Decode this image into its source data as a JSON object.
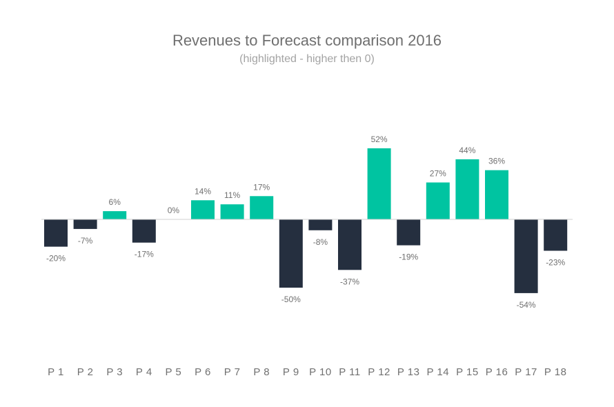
{
  "chart_data": {
    "type": "bar",
    "title": "Revenues to Forecast comparison 2016",
    "subtitle": "(highlighted - higher then 0)",
    "categories": [
      "P 1",
      "P 2",
      "P 3",
      "P 4",
      "P 5",
      "P 6",
      "P 7",
      "P 8",
      "P 9",
      "P 10",
      "P 11",
      "P 12",
      "P 13",
      "P 14",
      "P 15",
      "P 16",
      "P 17",
      "P 18"
    ],
    "values": [
      -20,
      -7,
      6,
      -17,
      0,
      14,
      11,
      17,
      -50,
      -8,
      -37,
      52,
      -19,
      27,
      44,
      36,
      -54,
      -23
    ],
    "data_labels": [
      "-20%",
      "-7%",
      "6%",
      "-17%",
      "0%",
      "14%",
      "11%",
      "17%",
      "-50%",
      "-8%",
      "-37%",
      "52%",
      "-19%",
      "27%",
      "44%",
      "36%",
      "-54%",
      "-23%"
    ],
    "unit": "%",
    "ylim": [
      -60,
      60
    ],
    "grid": false,
    "colors": {
      "positive": "#00c4a1",
      "negative": "#252f3f"
    }
  }
}
